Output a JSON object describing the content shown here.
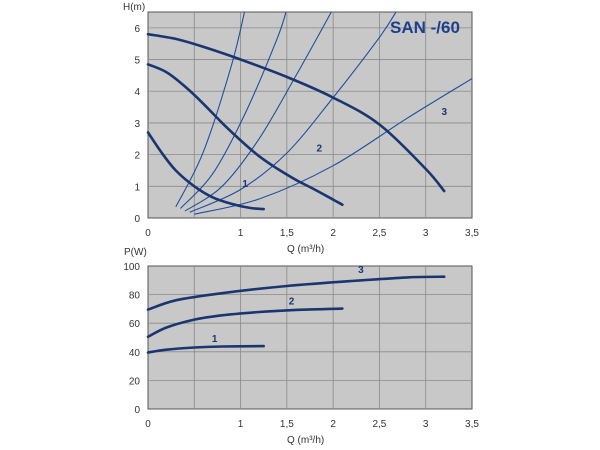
{
  "chart_data": [
    {
      "type": "line",
      "title": "SAN -/60",
      "ylabel": "H(m)",
      "xlabel": "Q (m³/h)",
      "xlim": [
        0,
        3.5
      ],
      "ylim": [
        0,
        6.5
      ],
      "x_ticks": [
        0,
        0.5,
        1,
        1.5,
        2,
        2.5,
        3,
        3.5
      ],
      "x_tick_labels": [
        "0",
        "",
        "1",
        "1,5",
        "2",
        "2,5",
        "3",
        "3,5"
      ],
      "y_ticks": [
        0,
        1,
        2,
        3,
        4,
        5,
        6
      ],
      "y_tick_labels": [
        "0",
        "1",
        "2",
        "3",
        "4",
        "5",
        "6"
      ],
      "grid": true,
      "series": [
        {
          "name": "1",
          "points": [
            [
              0,
              2.7
            ],
            [
              0.15,
              2.05
            ],
            [
              0.3,
              1.5
            ],
            [
              0.5,
              1.0
            ],
            [
              0.7,
              0.65
            ],
            [
              0.9,
              0.45
            ],
            [
              1.1,
              0.32
            ],
            [
              1.25,
              0.28
            ]
          ],
          "label_at": [
            1.05,
            0.98
          ]
        },
        {
          "name": "2",
          "points": [
            [
              0,
              4.85
            ],
            [
              0.2,
              4.6
            ],
            [
              0.4,
              4.15
            ],
            [
              0.6,
              3.6
            ],
            [
              0.8,
              3.0
            ],
            [
              1.0,
              2.45
            ],
            [
              1.2,
              1.95
            ],
            [
              1.4,
              1.55
            ],
            [
              1.6,
              1.2
            ],
            [
              1.8,
              0.9
            ],
            [
              2.0,
              0.58
            ],
            [
              2.1,
              0.42
            ]
          ],
          "label_at": [
            1.85,
            2.1
          ]
        },
        {
          "name": "3",
          "points": [
            [
              0,
              5.8
            ],
            [
              0.3,
              5.65
            ],
            [
              0.6,
              5.4
            ],
            [
              1.0,
              5.0
            ],
            [
              1.5,
              4.45
            ],
            [
              2.0,
              3.8
            ],
            [
              2.5,
              2.95
            ],
            [
              3.0,
              1.55
            ],
            [
              3.2,
              0.85
            ]
          ],
          "label_at": [
            3.2,
            3.25
          ]
        }
      ],
      "system_curves": [
        {
          "points": [
            [
              0.3,
              0.35
            ],
            [
              0.6,
              2.1
            ],
            [
              0.9,
              4.8
            ],
            [
              1.05,
              6.6
            ]
          ]
        },
        {
          "points": [
            [
              0.35,
              0.3
            ],
            [
              0.7,
              1.4
            ],
            [
              1.05,
              3.3
            ],
            [
              1.4,
              5.7
            ],
            [
              1.5,
              6.6
            ]
          ]
        },
        {
          "points": [
            [
              0.4,
              0.22
            ],
            [
              0.8,
              1.0
            ],
            [
              1.2,
              2.5
            ],
            [
              1.6,
              4.5
            ],
            [
              2.0,
              6.6
            ]
          ]
        },
        {
          "points": [
            [
              0.45,
              0.18
            ],
            [
              1.0,
              0.9
            ],
            [
              1.5,
              2.05
            ],
            [
              2.0,
              3.8
            ],
            [
              2.5,
              5.7
            ],
            [
              2.7,
              6.6
            ]
          ]
        },
        {
          "points": [
            [
              0.5,
              0.12
            ],
            [
              1.2,
              0.6
            ],
            [
              2.0,
              1.65
            ],
            [
              2.8,
              3.15
            ],
            [
              3.5,
              4.4
            ]
          ]
        }
      ]
    },
    {
      "type": "line",
      "title": "",
      "ylabel": "P(W)",
      "xlabel": "Q (m³/h)",
      "xlim": [
        0,
        3.5
      ],
      "ylim": [
        0,
        100
      ],
      "x_ticks": [
        0,
        0.5,
        1,
        1.5,
        2,
        2.5,
        3,
        3.5
      ],
      "x_tick_labels": [
        "0",
        "",
        "1",
        "1,5",
        "2",
        "2,5",
        "3",
        "3,5"
      ],
      "y_ticks": [
        0,
        20,
        40,
        60,
        80,
        100
      ],
      "y_tick_labels": [
        "0",
        "20",
        "40",
        "60",
        "80",
        "100"
      ],
      "grid": true,
      "series": [
        {
          "name": "1",
          "points": [
            [
              0,
              39.5
            ],
            [
              0.2,
              41.5
            ],
            [
              0.5,
              43.0
            ],
            [
              0.8,
              43.7
            ],
            [
              1.25,
              44.0
            ]
          ],
          "label_at": [
            0.72,
            47
          ]
        },
        {
          "name": "2",
          "points": [
            [
              0,
              50.5
            ],
            [
              0.2,
              57.0
            ],
            [
              0.5,
              62.5
            ],
            [
              0.8,
              65.5
            ],
            [
              1.2,
              67.8
            ],
            [
              1.6,
              69.3
            ],
            [
              2.1,
              70.2
            ]
          ],
          "label_at": [
            1.55,
            73
          ]
        },
        {
          "name": "3",
          "points": [
            [
              0,
              69.5
            ],
            [
              0.3,
              76.0
            ],
            [
              0.8,
              81.0
            ],
            [
              1.5,
              86.0
            ],
            [
              2.2,
              89.5
            ],
            [
              2.8,
              92.0
            ],
            [
              3.2,
              92.5
            ]
          ],
          "label_at": [
            2.3,
            95
          ]
        }
      ]
    }
  ]
}
